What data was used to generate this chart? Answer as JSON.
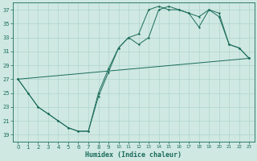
{
  "xlabel": "Humidex (Indice chaleur)",
  "background_color": "#cfe8e2",
  "grid_color": "#afd4cc",
  "line_color": "#1a6b5a",
  "xlim": [
    -0.5,
    23.5
  ],
  "ylim": [
    18,
    38
  ],
  "xticks": [
    0,
    1,
    2,
    3,
    4,
    5,
    6,
    7,
    8,
    9,
    10,
    11,
    12,
    13,
    14,
    15,
    16,
    17,
    18,
    19,
    20,
    21,
    22,
    23
  ],
  "yticks": [
    19,
    21,
    23,
    25,
    27,
    29,
    31,
    33,
    35,
    37
  ],
  "line1_x": [
    0,
    1,
    2,
    3,
    4,
    5,
    6,
    7,
    8,
    9,
    10,
    11,
    12,
    13,
    14,
    15,
    16,
    17,
    18,
    19,
    20,
    21,
    22,
    23
  ],
  "line1_y": [
    27,
    25,
    23,
    22,
    21,
    20,
    19.5,
    19.5,
    24.5,
    28,
    31.5,
    33,
    32,
    33,
    37,
    37.5,
    37,
    36.5,
    36,
    37,
    36,
    32,
    31.5,
    30
  ],
  "line2_x": [
    0,
    1,
    2,
    3,
    4,
    5,
    6,
    7,
    8,
    9,
    10,
    11,
    12,
    13,
    14,
    15,
    16,
    17,
    18,
    19,
    20,
    21,
    22,
    23
  ],
  "line2_y": [
    27,
    25,
    23,
    22,
    21,
    20,
    19.5,
    19.5,
    25,
    28.5,
    31.5,
    33,
    33.5,
    37,
    37.5,
    37,
    37,
    36.5,
    34.5,
    37,
    36.5,
    32,
    31.5,
    30
  ],
  "line3_x": [
    0,
    23
  ],
  "line3_y": [
    27,
    30
  ]
}
